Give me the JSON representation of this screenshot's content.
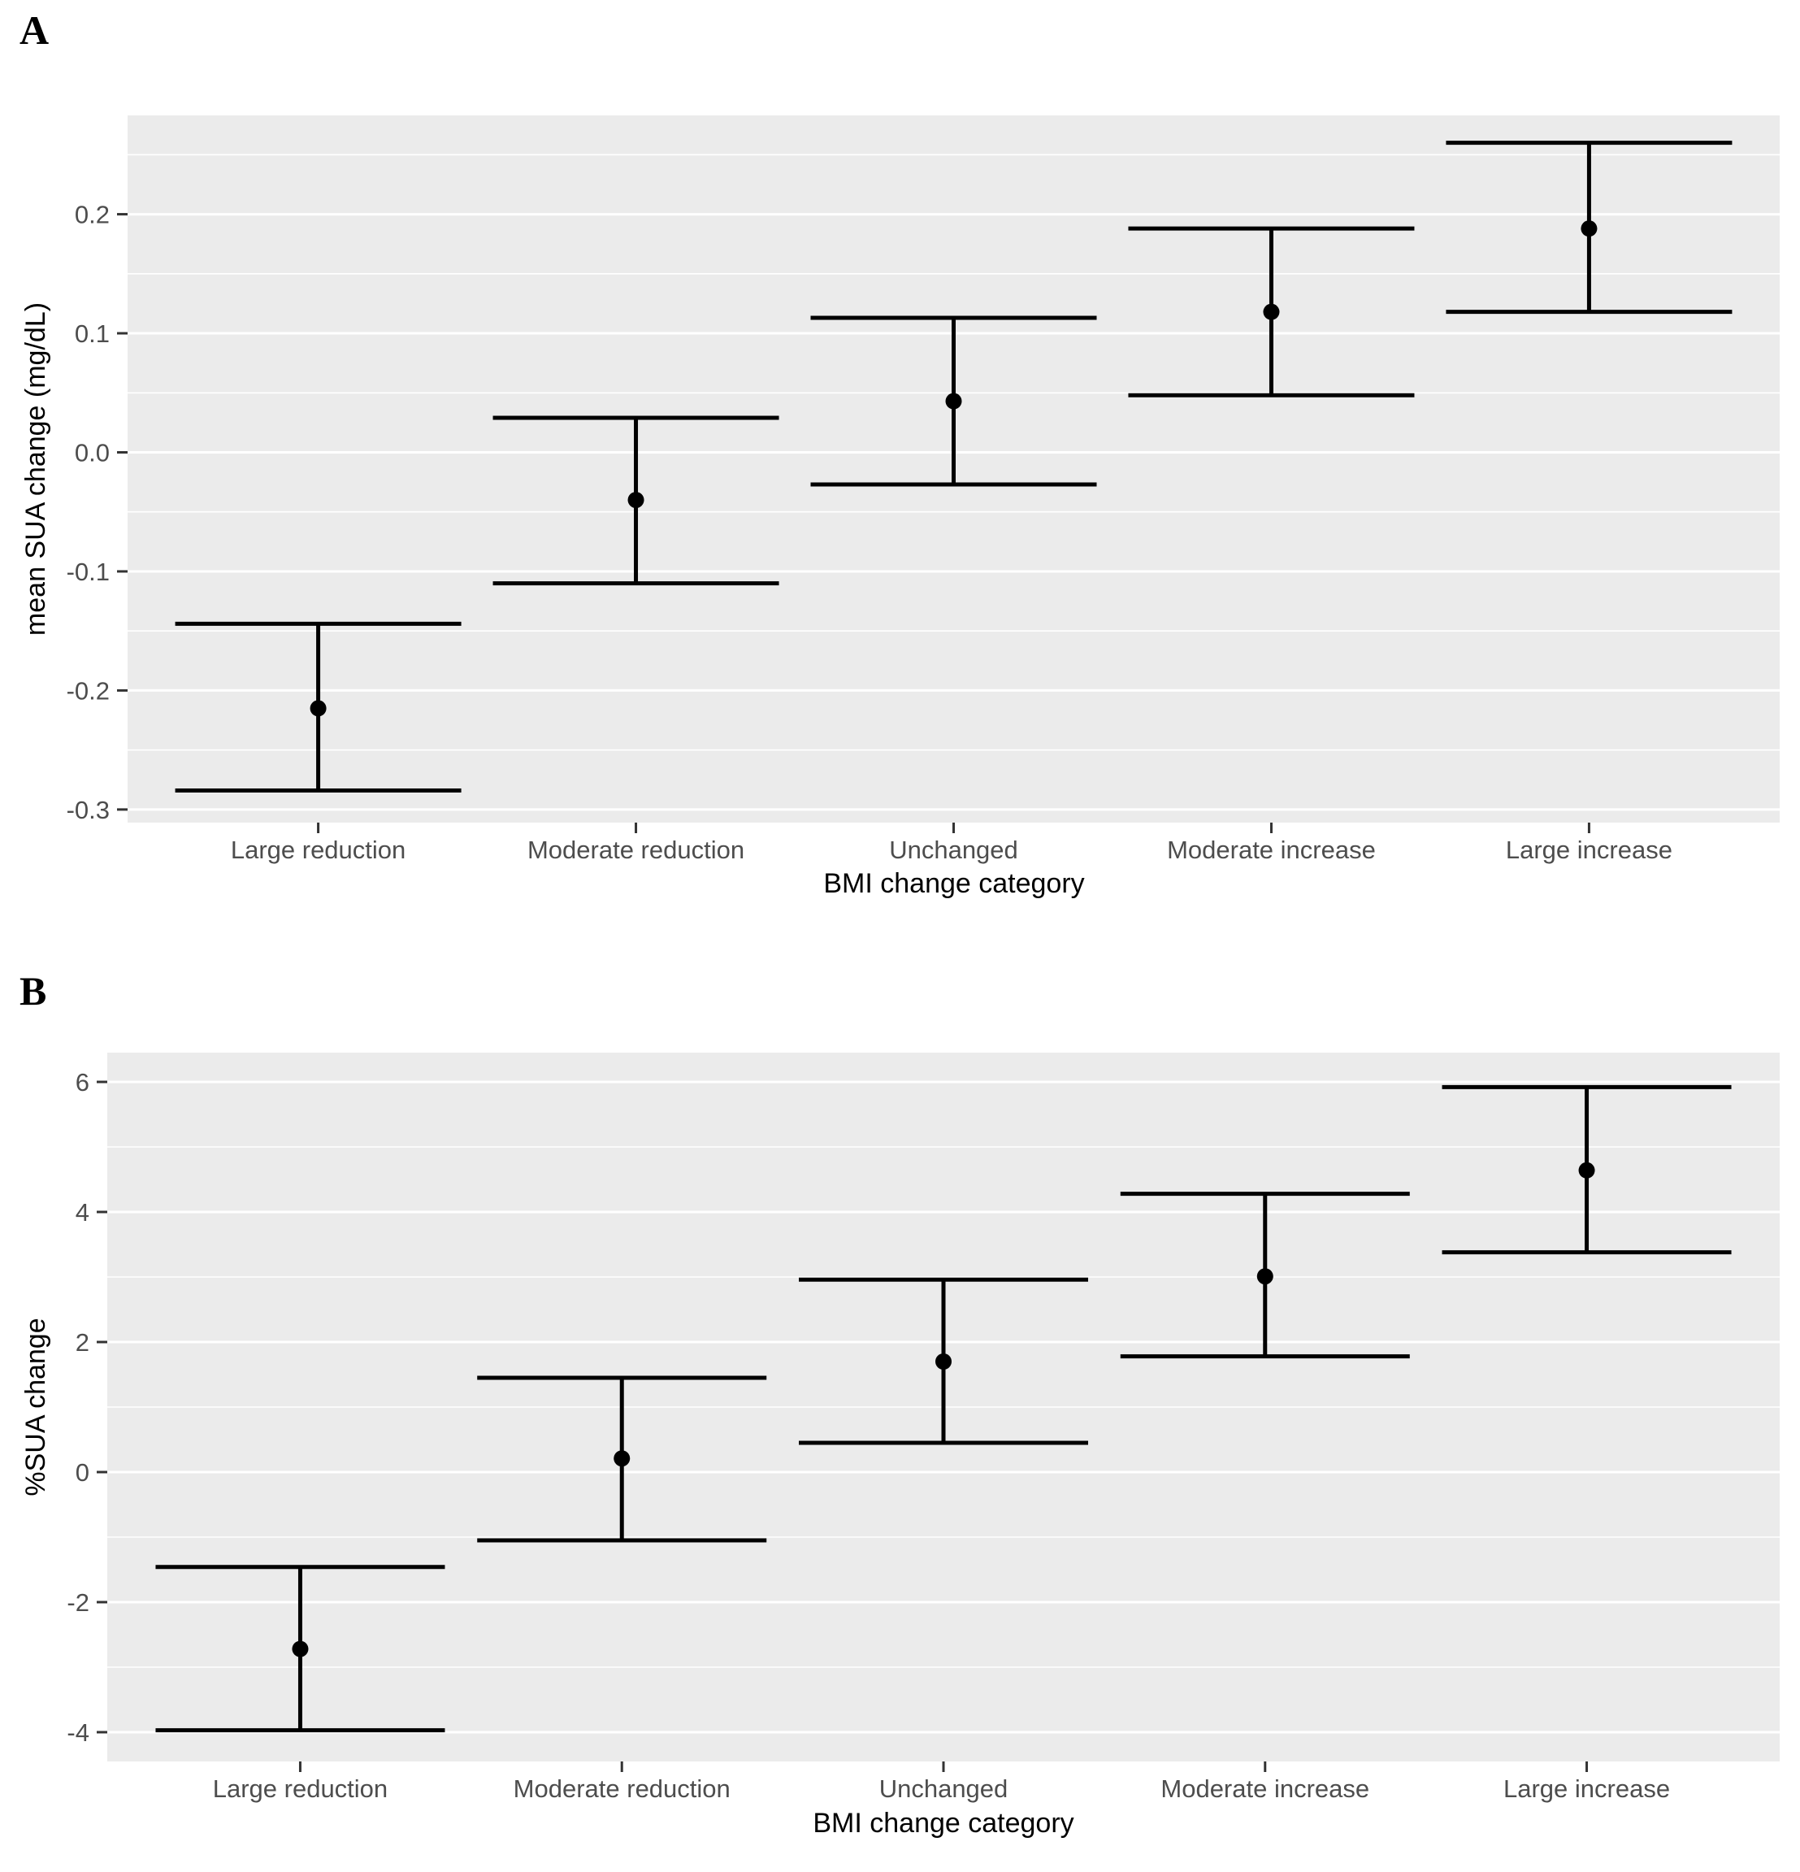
{
  "figure": {
    "background_color": "#FFFFFF",
    "panel_background_color": "#EBEBEB",
    "gridline_color": "#FFFFFF",
    "errorbar_color": "#000000",
    "tick_mark_color": "#333333",
    "tick_label_color": "#4D4D4D",
    "axis_title_color": "#000000"
  },
  "chart_data": [
    {
      "type": "errorbar",
      "panel_label": "A",
      "title": "",
      "xlabel": "BMI change category",
      "ylabel": "mean SUA change (mg/dL)",
      "categories": [
        "Large reduction",
        "Moderate reduction",
        "Unchanged",
        "Moderate increase",
        "Large increase"
      ],
      "series": [
        {
          "means": [
            -0.215,
            -0.04,
            0.043,
            0.118,
            0.188
          ],
          "lower": [
            -0.284,
            -0.11,
            -0.027,
            0.048,
            0.118
          ],
          "upper": [
            -0.144,
            0.029,
            0.113,
            0.188,
            0.26
          ]
        }
      ],
      "ylim": [
        -0.311,
        0.283
      ],
      "yticks": [
        0.2,
        0.1,
        0.0,
        -0.1,
        -0.2,
        -0.3
      ],
      "ytick_labels": [
        "0.2",
        "0.1",
        "0.0",
        "-0.1",
        "-0.2",
        "-0.3"
      ],
      "minor_yticks": [
        0.25,
        0.15,
        0.05,
        -0.05,
        -0.15,
        -0.25
      ],
      "grid": true,
      "legend": false
    },
    {
      "type": "errorbar",
      "panel_label": "B",
      "title": "",
      "xlabel": "BMI change category",
      "ylabel": "%SUA change",
      "categories": [
        "Large reduction",
        "Moderate reduction",
        "Unchanged",
        "Moderate increase",
        "Large increase"
      ],
      "series": [
        {
          "means": [
            -2.72,
            0.21,
            1.7,
            3.01,
            4.64
          ],
          "lower": [
            -3.97,
            -1.05,
            0.45,
            1.78,
            3.38
          ],
          "upper": [
            -1.46,
            1.45,
            2.96,
            4.28,
            5.92
          ]
        }
      ],
      "ylim": [
        -4.45,
        6.45
      ],
      "yticks": [
        6,
        4,
        2,
        0,
        -2,
        -4
      ],
      "ytick_labels": [
        "6",
        "4",
        "2",
        "0",
        "-2",
        "-4"
      ],
      "minor_yticks": [
        5,
        3,
        1,
        -1,
        -3
      ],
      "grid": true,
      "legend": false
    }
  ]
}
